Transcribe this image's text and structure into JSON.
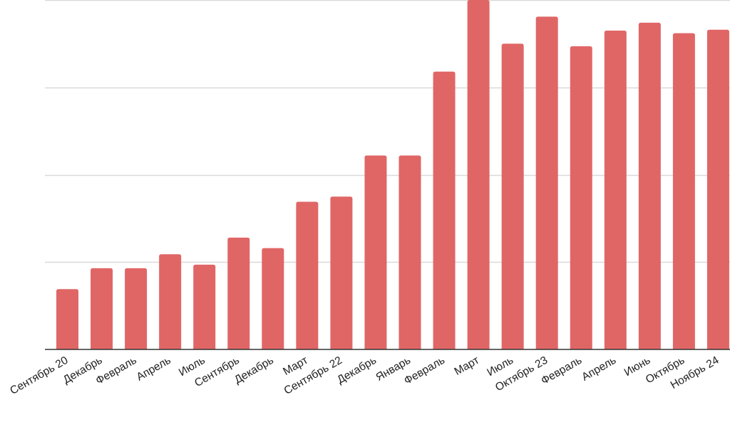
{
  "chart_data": {
    "type": "bar",
    "title": "",
    "xlabel": "",
    "ylabel": "",
    "categories": [
      "Сентябрь 20",
      "Декабрь",
      "Февраль",
      "Апрель",
      "Июль",
      "Сентябрь",
      "Декабрь",
      "Март",
      "Сентябрь 22",
      "Декабрь",
      "Январь",
      "Февраль",
      "Март",
      "Июль",
      "Октябрь 23",
      "Февраль",
      "Апрель",
      "Июнь",
      "Октябрь",
      "Ноябрь 24"
    ],
    "values": [
      0.69,
      0.93,
      0.93,
      1.09,
      0.97,
      1.28,
      1.16,
      1.69,
      1.75,
      2.22,
      2.22,
      3.18,
      4.0,
      3.5,
      3.81,
      3.47,
      3.65,
      3.74,
      3.62,
      3.66
    ],
    "ylim": [
      0,
      4.0
    ],
    "gridlines": [
      1,
      2,
      3,
      4
    ],
    "grid": true,
    "legend": "none",
    "colors": {
      "bar": "#e06666",
      "grid": "#d9d9d9",
      "axis": "#333333",
      "label": "#222222"
    }
  }
}
